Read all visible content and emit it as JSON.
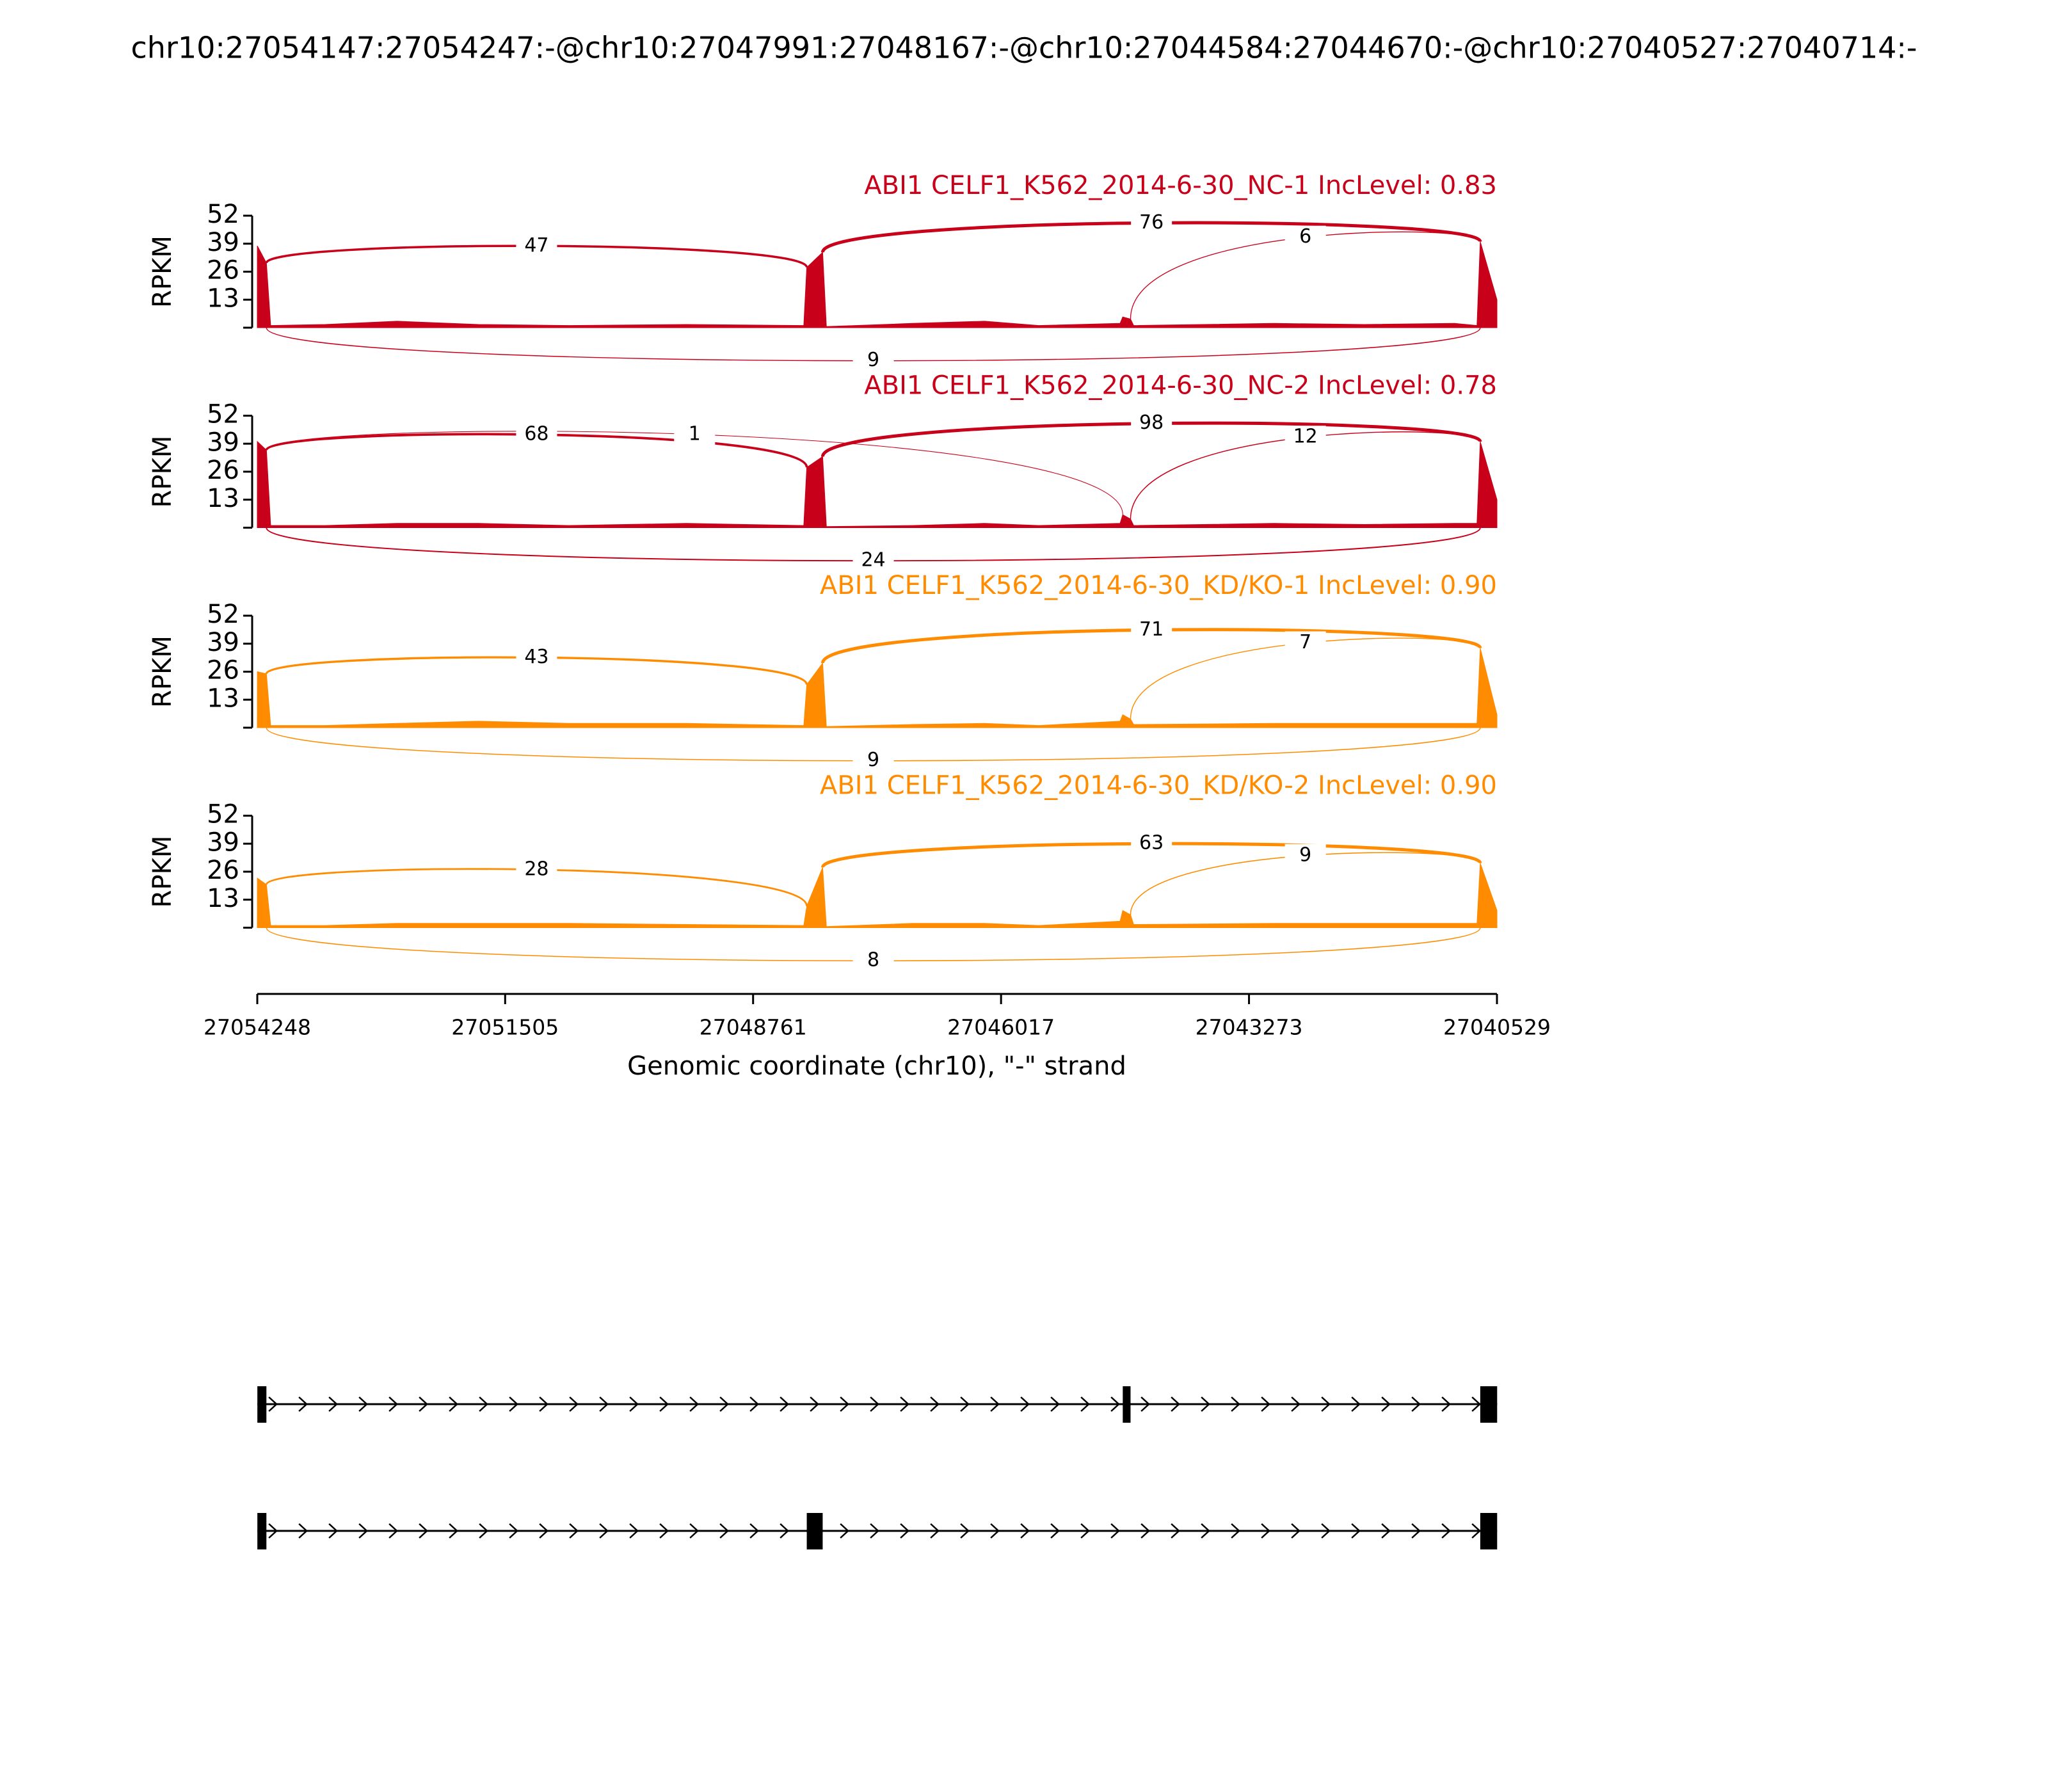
{
  "chart_data": {
    "type": "sashimi",
    "title": "chr10:27054147:27054247:-@chr10:27047991:27048167:-@chr10:27044584:27044670:-@chr10:27040527:27040714:-",
    "xlabel": "Genomic coordinate (chr10), \"-\" strand",
    "ylabel": "RPKM",
    "xlim": [
      27054248,
      27040529
    ],
    "xticks": [
      27054248,
      27051505,
      27048761,
      27046017,
      27043273,
      27040529
    ],
    "ylim": [
      0,
      52
    ],
    "yticks": [
      13,
      26,
      39,
      52
    ],
    "coverage_x": [
      27054248,
      27054247,
      27054147,
      27054100,
      27053500,
      27052700,
      27051800,
      27050800,
      27049500,
      27048200,
      27048167,
      27047991,
      27047950,
      27047000,
      27046200,
      27045600,
      27044700,
      27044670,
      27044584,
      27044550,
      27043000,
      27042000,
      27041000,
      27040750,
      27040714,
      27040529
    ],
    "panels": [
      {
        "label": "ABI1 CELF1_K562_2014-6-30_NC-1 IncLevel: 0.83",
        "color": "#c8001a",
        "coverage": [
          0,
          38,
          30,
          1,
          1.5,
          3,
          1.5,
          1,
          1.5,
          1,
          28,
          35,
          0.5,
          2,
          3,
          1,
          2,
          5,
          4,
          1,
          2,
          1.5,
          2,
          1,
          40,
          13
        ],
        "junctions": [
          {
            "start": 27054147,
            "end": 27048167,
            "count": 47
          },
          {
            "start": 27047991,
            "end": 27040714,
            "count": 76
          },
          {
            "start": 27044584,
            "end": 27040714,
            "count": 6
          },
          {
            "start": 27054147,
            "end": 27040714,
            "count": 9
          }
        ]
      },
      {
        "label": "ABI1 CELF1_K562_2014-6-30_NC-2 IncLevel: 0.78",
        "color": "#c8001a",
        "coverage": [
          0,
          40,
          36,
          1,
          1,
          2,
          2,
          1,
          2,
          1,
          28,
          33,
          0.5,
          1,
          2,
          1,
          2,
          6,
          4,
          1,
          2,
          1.5,
          2,
          2,
          40,
          13
        ],
        "junctions": [
          {
            "start": 27054147,
            "end": 27048167,
            "count": 68
          },
          {
            "start": 27054147,
            "end": 27044670,
            "count": 1
          },
          {
            "start": 27047991,
            "end": 27040714,
            "count": 98
          },
          {
            "start": 27044584,
            "end": 27040714,
            "count": 12
          },
          {
            "start": 27054147,
            "end": 27040714,
            "count": 24
          }
        ]
      },
      {
        "label": "ABI1 CELF1_K562_2014-6-30_KD/KO-1 IncLevel: 0.90",
        "color": "#ff8c00",
        "coverage": [
          0,
          26,
          25,
          1,
          1,
          2,
          3,
          2,
          2,
          1,
          20,
          30,
          0.5,
          1.5,
          2,
          1,
          3,
          6,
          4,
          1.5,
          2,
          2,
          2,
          2,
          37,
          6
        ],
        "junctions": [
          {
            "start": 27054147,
            "end": 27048167,
            "count": 43
          },
          {
            "start": 27047991,
            "end": 27040714,
            "count": 71
          },
          {
            "start": 27044584,
            "end": 27040714,
            "count": 7
          },
          {
            "start": 27054147,
            "end": 27040714,
            "count": 9
          }
        ]
      },
      {
        "label": "ABI1 CELF1_K562_2014-6-30_KD/KO-2 IncLevel: 0.90",
        "color": "#ff8c00",
        "coverage": [
          0,
          23,
          20,
          1,
          1,
          2,
          2,
          2,
          1.5,
          1,
          10,
          28,
          0.5,
          2,
          2,
          1,
          3,
          8,
          6,
          1.5,
          2,
          2,
          2,
          2,
          30,
          8
        ],
        "junctions": [
          {
            "start": 27054147,
            "end": 27048167,
            "count": 28
          },
          {
            "start": 27047991,
            "end": 27040714,
            "count": 63
          },
          {
            "start": 27044584,
            "end": 27040714,
            "count": 9
          },
          {
            "start": 27054147,
            "end": 27040714,
            "count": 8
          }
        ]
      }
    ],
    "transcripts": [
      {
        "exons": [
          [
            27054147,
            27054247
          ],
          [
            27044584,
            27044670
          ],
          [
            27040527,
            27040714
          ]
        ]
      },
      {
        "exons": [
          [
            27054147,
            27054247
          ],
          [
            27047991,
            27048167
          ],
          [
            27040527,
            27040714
          ]
        ]
      }
    ]
  }
}
